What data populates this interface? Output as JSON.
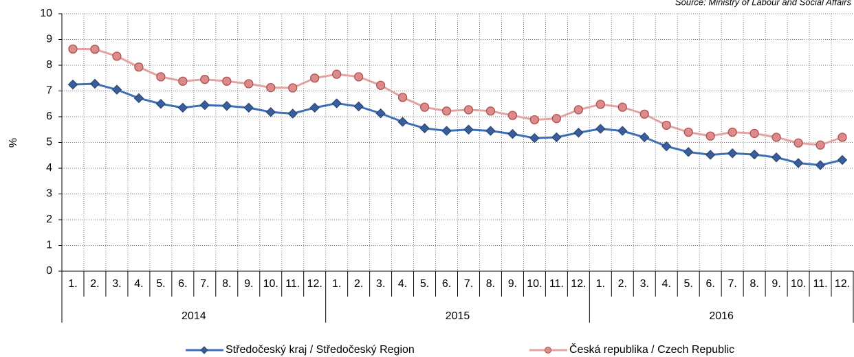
{
  "chart_data": {
    "type": "line",
    "source": "Source: Ministry of Labour and Social Affairs",
    "y_axis_label": "%",
    "categories": [
      "1.",
      "2.",
      "3.",
      "4.",
      "5.",
      "6.",
      "7.",
      "8.",
      "9.",
      "10.",
      "11.",
      "12.",
      "1.",
      "2.",
      "3.",
      "4.",
      "5.",
      "6.",
      "7.",
      "8.",
      "9.",
      "10.",
      "11.",
      "12.",
      "1.",
      "2.",
      "3.",
      "4.",
      "5.",
      "6.",
      "7.",
      "8.",
      "9.",
      "10.",
      "11.",
      "12."
    ],
    "category_groups": [
      "2014",
      "2015",
      "2016"
    ],
    "series": [
      {
        "name": "Středočeský kraj / Středočeský Region",
        "color": "#3f6fb6",
        "marker": "diamond",
        "values": [
          7.25,
          7.28,
          7.05,
          6.72,
          6.5,
          6.35,
          6.45,
          6.42,
          6.35,
          6.18,
          6.12,
          6.35,
          6.52,
          6.4,
          6.13,
          5.8,
          5.55,
          5.45,
          5.5,
          5.45,
          5.33,
          5.17,
          5.2,
          5.38,
          5.53,
          5.45,
          5.2,
          4.85,
          4.63,
          4.52,
          4.58,
          4.53,
          4.42,
          4.2,
          4.12,
          4.32
        ]
      },
      {
        "name": "Česká republika / Czech Republic",
        "color": "#e3a3a1",
        "marker": "circle",
        "values": [
          8.63,
          8.62,
          8.35,
          7.93,
          7.55,
          7.38,
          7.45,
          7.38,
          7.28,
          7.13,
          7.12,
          7.5,
          7.65,
          7.55,
          7.22,
          6.75,
          6.37,
          6.22,
          6.27,
          6.22,
          6.05,
          5.88,
          5.93,
          6.27,
          6.48,
          6.37,
          6.1,
          5.67,
          5.4,
          5.25,
          5.4,
          5.35,
          5.2,
          4.98,
          4.9,
          5.2
        ]
      }
    ],
    "ylim": [
      0,
      10
    ],
    "yticks": [
      0,
      1,
      2,
      3,
      4,
      5,
      6,
      7,
      8,
      9,
      10
    ],
    "grid": true,
    "legend": "bottom"
  }
}
